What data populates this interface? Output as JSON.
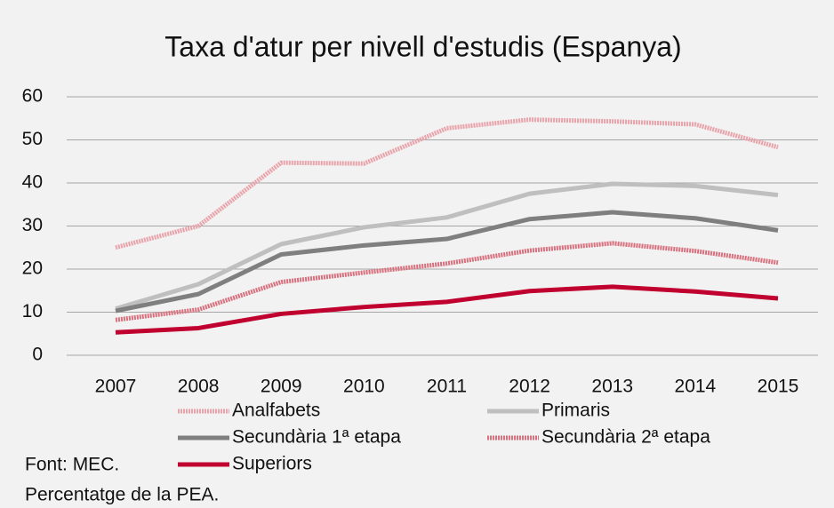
{
  "chart_data": {
    "type": "line",
    "title": "Taxa d'atur per nivell d'estudis (Espanya)",
    "categories": [
      "2007",
      "2008",
      "2009",
      "2010",
      "2011",
      "2012",
      "2013",
      "2014",
      "2015"
    ],
    "series": [
      {
        "name": "Analfabets",
        "color": "#e9a3ab",
        "dashed": true,
        "values": [
          25,
          30,
          44.7,
          44.5,
          52.7,
          54.7,
          54.3,
          53.6,
          48.3
        ]
      },
      {
        "name": "Primaris",
        "color": "#bfbfbf",
        "dashed": false,
        "values": [
          10.8,
          16.5,
          25.8,
          29.7,
          32,
          37.5,
          39.8,
          39.3,
          37.2
        ]
      },
      {
        "name": "Secundària 1ª etapa",
        "color": "#7f7f7f",
        "dashed": false,
        "values": [
          10.3,
          14.2,
          23.4,
          25.5,
          27,
          31.6,
          33.2,
          31.8,
          29
        ]
      },
      {
        "name": "Secundària 2ª etapa",
        "color": "#d8707e",
        "dashed": true,
        "values": [
          8.2,
          10.6,
          17,
          19.2,
          21.3,
          24.3,
          26,
          24.2,
          21.5
        ]
      },
      {
        "name": "Superiors",
        "color": "#c0002f",
        "dashed": false,
        "values": [
          5.3,
          6.3,
          9.6,
          11.2,
          12.4,
          14.9,
          15.9,
          14.8,
          13.2
        ]
      }
    ],
    "ylim": [
      0,
      60
    ],
    "yticks": [
      0,
      10,
      20,
      30,
      40,
      50,
      60
    ],
    "grid": true,
    "source": "Font: MEC.",
    "note": "Percentatge de la PEA."
  }
}
